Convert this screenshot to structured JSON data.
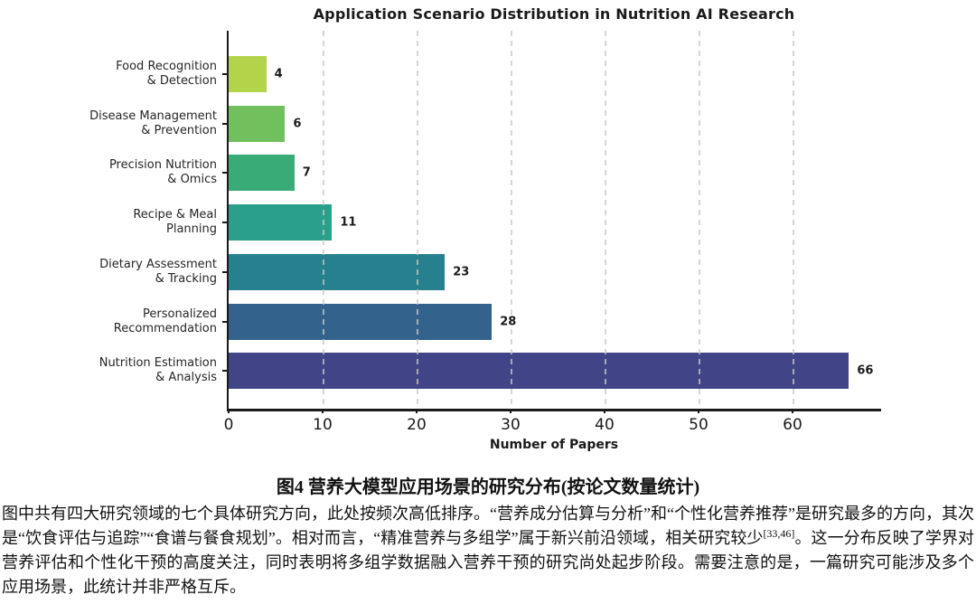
{
  "chart_data": {
    "type": "bar",
    "orientation": "horizontal",
    "title": "Application Scenario Distribution in Nutrition AI Research",
    "xlabel": "Number of Papers",
    "categories": [
      [
        "Food Recognition",
        "& Detection"
      ],
      [
        "Disease Management",
        "& Prevention"
      ],
      [
        "Precision Nutrition",
        "& Omics"
      ],
      [
        "Recipe & Meal",
        "Planning"
      ],
      [
        "Dietary Assessment",
        "& Tracking"
      ],
      [
        "Personalized",
        "Recommendation"
      ],
      [
        "Nutrition Estimation",
        "& Analysis"
      ]
    ],
    "values": [
      4,
      6,
      7,
      11,
      23,
      28,
      66
    ],
    "bar_colors": [
      "#b2d34a",
      "#70c05d",
      "#39ab77",
      "#2aa08c",
      "#27808e",
      "#33638c",
      "#414487"
    ],
    "x_ticks": [
      0,
      10,
      20,
      30,
      40,
      50,
      60
    ],
    "xlim": [
      0,
      69.6
    ],
    "grid": "dashed-vertical",
    "legend": "none",
    "axis_color": "#1a1a1a",
    "gridline_color": "#c9c9c9"
  },
  "caption": {
    "title": "图4 营养大模型应用场景的研究分布(按论文数量统计)",
    "body_part1": "图中共有四大研究领域的七个具体研究方向，此处按频次高低排序。“营养成分估算与分析”和“个性化营养推荐”是研究最多的方向，其次是“饮食评估与追踪”“食谱与餐食规划”。相对而言，“精准营养与多组学”属于新兴前沿领域，相关研究较少",
    "body_sup": "[33,46]",
    "body_part2": "。这一分布反映了学界对营养评估和个性化干预的高度关注，同时表明将多组学数据融入营养干预的研究尚处起步阶段。需要注意的是，一篇研究可能涉及多个应用场景，此统计并非严格互斥。"
  }
}
